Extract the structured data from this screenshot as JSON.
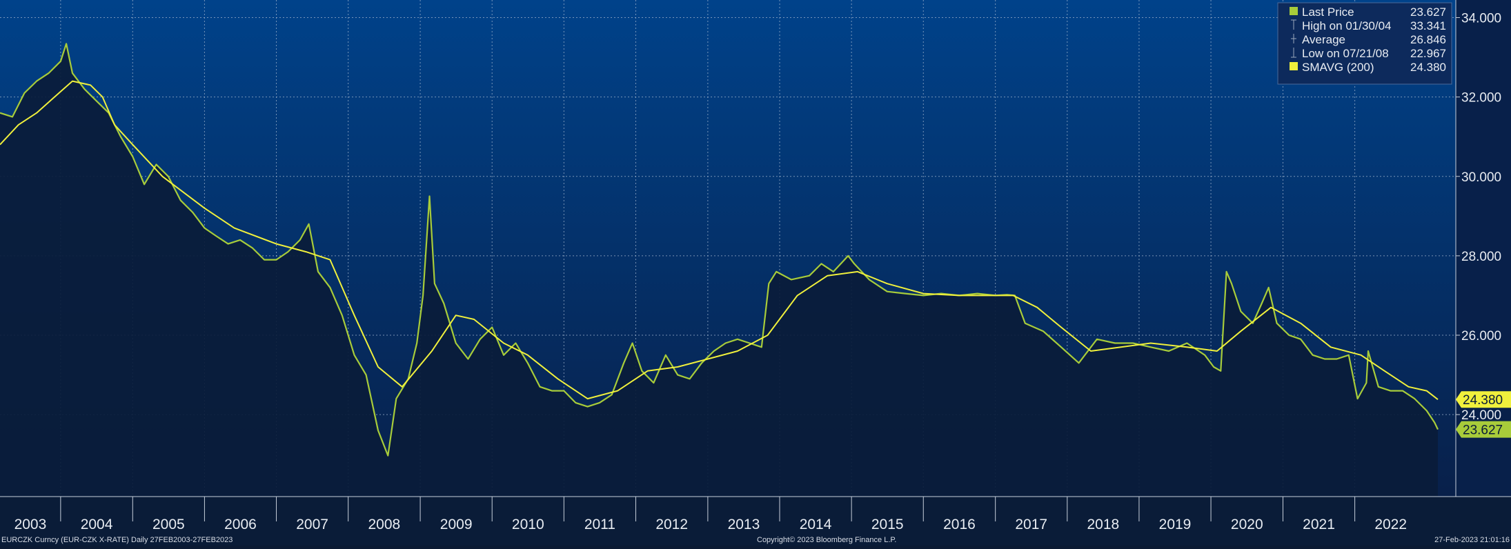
{
  "footer": {
    "left": "EURCZK Curncy (EUR-CZK X-RATE)  Daily 27FEB2003-27FEB2023",
    "center": "Copyright© 2023 Bloomberg Finance L.P.",
    "right": "27-Feb-2023 21:01:16"
  },
  "colors": {
    "background_top": "#00428a",
    "background_bottom": "#08204a",
    "area_fill": "#0a1c3a",
    "price_line": "#a8cc3a",
    "smavg_line": "#f0f03c",
    "legend_bg": "#0d2a5c",
    "last_price_tag": "#a8cc3a",
    "smavg_tag": "#f0f03c"
  },
  "chart_data": {
    "type": "line",
    "title": "",
    "xlabel": "",
    "ylabel": "",
    "ylim": [
      21.9,
      34.2
    ],
    "y_ticks": [
      "24.000",
      "26.000",
      "28.000",
      "30.000",
      "32.000",
      "34.000"
    ],
    "x_range": [
      "2003-02-27",
      "2023-02-27"
    ],
    "x_tick_labels": [
      "2003",
      "2004",
      "2005",
      "2006",
      "2007",
      "2008",
      "2009",
      "2010",
      "2011",
      "2012",
      "2013",
      "2014",
      "2015",
      "2016",
      "2017",
      "2018",
      "2019",
      "2020",
      "2021",
      "2022"
    ],
    "grid": true,
    "legend_position": "top-right",
    "legend": [
      {
        "label": "Last Price",
        "value": "23.627",
        "marker": "square",
        "color": "#a8cc3a"
      },
      {
        "label": "High on 01/30/04",
        "value": "33.341",
        "marker": "high"
      },
      {
        "label": "Average",
        "value": "26.846",
        "marker": "average"
      },
      {
        "label": "Low on 07/21/08",
        "value": "22.967",
        "marker": "low"
      },
      {
        "label": "SMAVG (200)",
        "value": "24.380",
        "marker": "square",
        "color": "#f0f03c"
      }
    ],
    "price_tags": [
      {
        "label": "24.380",
        "series": "SMAVG (200)",
        "value": 24.38
      },
      {
        "label": "23.627",
        "series": "Last Price",
        "value": 23.627
      }
    ],
    "series": [
      {
        "name": "Last Price",
        "points": [
          [
            "2003-02-27",
            31.6
          ],
          [
            "2003-05-01",
            31.5
          ],
          [
            "2003-07-01",
            32.1
          ],
          [
            "2003-09-01",
            32.4
          ],
          [
            "2003-11-01",
            32.6
          ],
          [
            "2004-01-01",
            32.9
          ],
          [
            "2004-01-30",
            33.341
          ],
          [
            "2004-03-01",
            32.6
          ],
          [
            "2004-05-01",
            32.2
          ],
          [
            "2004-07-01",
            31.9
          ],
          [
            "2004-09-01",
            31.6
          ],
          [
            "2004-11-01",
            31.0
          ],
          [
            "2005-01-01",
            30.5
          ],
          [
            "2005-03-01",
            29.8
          ],
          [
            "2005-05-01",
            30.3
          ],
          [
            "2005-07-01",
            30.0
          ],
          [
            "2005-09-01",
            29.4
          ],
          [
            "2005-11-01",
            29.1
          ],
          [
            "2006-01-01",
            28.7
          ],
          [
            "2006-03-01",
            28.5
          ],
          [
            "2006-05-01",
            28.3
          ],
          [
            "2006-07-01",
            28.4
          ],
          [
            "2006-09-01",
            28.2
          ],
          [
            "2006-11-01",
            27.9
          ],
          [
            "2007-01-01",
            27.9
          ],
          [
            "2007-03-01",
            28.1
          ],
          [
            "2007-05-01",
            28.4
          ],
          [
            "2007-06-15",
            28.8
          ],
          [
            "2007-08-01",
            27.6
          ],
          [
            "2007-10-01",
            27.2
          ],
          [
            "2007-12-01",
            26.5
          ],
          [
            "2008-02-01",
            25.5
          ],
          [
            "2008-04-01",
            25.0
          ],
          [
            "2008-06-01",
            23.6
          ],
          [
            "2008-07-21",
            22.967
          ],
          [
            "2008-09-01",
            24.4
          ],
          [
            "2008-11-01",
            24.9
          ],
          [
            "2008-12-15",
            25.8
          ],
          [
            "2009-01-15",
            27.0
          ],
          [
            "2009-02-17",
            29.5
          ],
          [
            "2009-03-15",
            27.3
          ],
          [
            "2009-05-01",
            26.8
          ],
          [
            "2009-07-01",
            25.8
          ],
          [
            "2009-09-01",
            25.4
          ],
          [
            "2009-11-01",
            25.9
          ],
          [
            "2010-01-01",
            26.2
          ],
          [
            "2010-03-01",
            25.5
          ],
          [
            "2010-05-01",
            25.8
          ],
          [
            "2010-07-01",
            25.3
          ],
          [
            "2010-09-01",
            24.7
          ],
          [
            "2010-11-01",
            24.6
          ],
          [
            "2011-01-01",
            24.6
          ],
          [
            "2011-03-01",
            24.3
          ],
          [
            "2011-05-01",
            24.2
          ],
          [
            "2011-07-01",
            24.3
          ],
          [
            "2011-09-01",
            24.5
          ],
          [
            "2011-11-01",
            25.3
          ],
          [
            "2011-12-15",
            25.8
          ],
          [
            "2012-02-01",
            25.1
          ],
          [
            "2012-04-01",
            24.8
          ],
          [
            "2012-06-01",
            25.5
          ],
          [
            "2012-08-01",
            25.0
          ],
          [
            "2012-10-01",
            24.9
          ],
          [
            "2012-12-01",
            25.3
          ],
          [
            "2013-02-01",
            25.6
          ],
          [
            "2013-04-01",
            25.8
          ],
          [
            "2013-06-01",
            25.9
          ],
          [
            "2013-08-01",
            25.8
          ],
          [
            "2013-10-01",
            25.7
          ],
          [
            "2013-11-07",
            27.3
          ],
          [
            "2013-12-15",
            27.6
          ],
          [
            "2014-03-01",
            27.4
          ],
          [
            "2014-06-01",
            27.5
          ],
          [
            "2014-08-01",
            27.8
          ],
          [
            "2014-10-01",
            27.6
          ],
          [
            "2014-12-15",
            28.0
          ],
          [
            "2015-01-15",
            27.8
          ],
          [
            "2015-04-01",
            27.4
          ],
          [
            "2015-07-01",
            27.1
          ],
          [
            "2015-10-01",
            27.05
          ],
          [
            "2016-01-01",
            27.0
          ],
          [
            "2016-04-01",
            27.05
          ],
          [
            "2016-07-01",
            27.0
          ],
          [
            "2016-10-01",
            27.05
          ],
          [
            "2017-01-01",
            27.0
          ],
          [
            "2017-03-01",
            27.02
          ],
          [
            "2017-04-10",
            27.0
          ],
          [
            "2017-06-01",
            26.3
          ],
          [
            "2017-09-01",
            26.1
          ],
          [
            "2017-12-01",
            25.7
          ],
          [
            "2018-03-01",
            25.3
          ],
          [
            "2018-06-01",
            25.9
          ],
          [
            "2018-09-01",
            25.8
          ],
          [
            "2018-12-01",
            25.8
          ],
          [
            "2019-03-01",
            25.7
          ],
          [
            "2019-06-01",
            25.6
          ],
          [
            "2019-09-01",
            25.8
          ],
          [
            "2019-12-01",
            25.5
          ],
          [
            "2020-01-15",
            25.2
          ],
          [
            "2020-02-20",
            25.1
          ],
          [
            "2020-03-20",
            27.6
          ],
          [
            "2020-04-15",
            27.3
          ],
          [
            "2020-06-01",
            26.6
          ],
          [
            "2020-08-01",
            26.3
          ],
          [
            "2020-09-15",
            26.8
          ],
          [
            "2020-10-20",
            27.2
          ],
          [
            "2020-12-01",
            26.3
          ],
          [
            "2021-02-01",
            26.0
          ],
          [
            "2021-04-01",
            25.9
          ],
          [
            "2021-06-01",
            25.5
          ],
          [
            "2021-08-01",
            25.4
          ],
          [
            "2021-10-01",
            25.4
          ],
          [
            "2021-12-01",
            25.5
          ],
          [
            "2022-01-15",
            24.4
          ],
          [
            "2022-03-01",
            24.8
          ],
          [
            "2022-03-10",
            25.6
          ],
          [
            "2022-05-01",
            24.7
          ],
          [
            "2022-07-01",
            24.6
          ],
          [
            "2022-09-01",
            24.6
          ],
          [
            "2022-11-01",
            24.4
          ],
          [
            "2023-01-01",
            24.1
          ],
          [
            "2023-02-10",
            23.8
          ],
          [
            "2023-02-27",
            23.627
          ]
        ]
      },
      {
        "name": "SMAVG (200)",
        "points": [
          [
            "2003-02-27",
            30.8
          ],
          [
            "2003-06-01",
            31.3
          ],
          [
            "2003-09-01",
            31.6
          ],
          [
            "2003-12-01",
            32.0
          ],
          [
            "2004-03-01",
            32.4
          ],
          [
            "2004-06-01",
            32.3
          ],
          [
            "2004-08-01",
            32.0
          ],
          [
            "2004-10-01",
            31.3
          ],
          [
            "2005-01-01",
            30.8
          ],
          [
            "2005-06-01",
            30.0
          ],
          [
            "2006-01-01",
            29.2
          ],
          [
            "2006-06-01",
            28.7
          ],
          [
            "2007-01-01",
            28.3
          ],
          [
            "2007-06-01",
            28.1
          ],
          [
            "2007-10-01",
            27.9
          ],
          [
            "2008-02-01",
            26.5
          ],
          [
            "2008-06-01",
            25.2
          ],
          [
            "2008-10-01",
            24.7
          ],
          [
            "2009-03-01",
            25.6
          ],
          [
            "2009-07-01",
            26.5
          ],
          [
            "2009-10-01",
            26.4
          ],
          [
            "2010-03-01",
            25.8
          ],
          [
            "2010-07-01",
            25.5
          ],
          [
            "2010-12-01",
            24.9
          ],
          [
            "2011-05-01",
            24.4
          ],
          [
            "2011-10-01",
            24.6
          ],
          [
            "2012-03-01",
            25.1
          ],
          [
            "2012-08-01",
            25.2
          ],
          [
            "2013-01-01",
            25.4
          ],
          [
            "2013-06-01",
            25.6
          ],
          [
            "2013-11-01",
            26.0
          ],
          [
            "2014-04-01",
            27.0
          ],
          [
            "2014-09-01",
            27.5
          ],
          [
            "2015-02-01",
            27.6
          ],
          [
            "2015-07-01",
            27.3
          ],
          [
            "2016-01-01",
            27.05
          ],
          [
            "2016-07-01",
            27.0
          ],
          [
            "2017-04-01",
            27.0
          ],
          [
            "2017-08-01",
            26.7
          ],
          [
            "2017-12-01",
            26.2
          ],
          [
            "2018-05-01",
            25.6
          ],
          [
            "2018-10-01",
            25.7
          ],
          [
            "2019-03-01",
            25.8
          ],
          [
            "2019-09-01",
            25.7
          ],
          [
            "2020-02-01",
            25.6
          ],
          [
            "2020-06-01",
            26.1
          ],
          [
            "2020-11-01",
            26.7
          ],
          [
            "2021-04-01",
            26.3
          ],
          [
            "2021-09-01",
            25.7
          ],
          [
            "2022-02-01",
            25.5
          ],
          [
            "2022-06-01",
            25.1
          ],
          [
            "2022-10-01",
            24.7
          ],
          [
            "2023-01-01",
            24.6
          ],
          [
            "2023-02-27",
            24.38
          ]
        ]
      }
    ]
  }
}
